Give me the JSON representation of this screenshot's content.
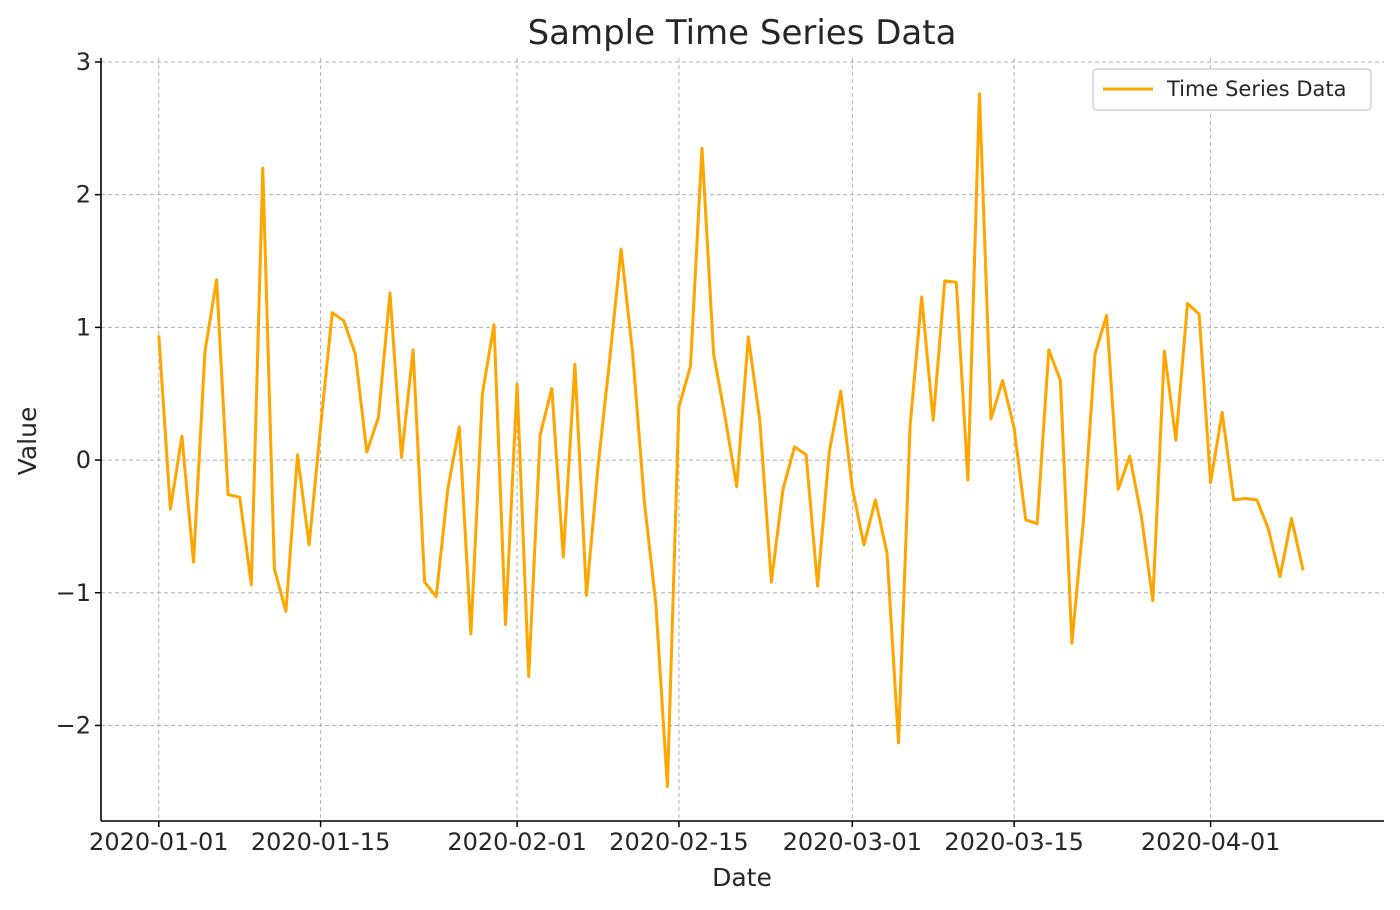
{
  "chart_data": {
    "type": "line",
    "title": "Sample Time Series Data",
    "xlabel": "Date",
    "ylabel": "Value",
    "x_start": "2020-01-01",
    "x_ticks": [
      "2020-01-01",
      "2020-01-15",
      "2020-02-01",
      "2020-02-15",
      "2020-03-01",
      "2020-03-15",
      "2020-04-01"
    ],
    "y_ticks": [
      3,
      2,
      1,
      0,
      -1,
      -2
    ],
    "y_tick_labels": [
      "3",
      "2",
      "1",
      "0",
      "−1",
      "−2"
    ],
    "xlim": [
      "2019-12-27",
      "2020-04-16"
    ],
    "ylim": [
      -2.72,
      3.03
    ],
    "grid": true,
    "legend_position": "top-right",
    "series": [
      {
        "name": "Time Series Data",
        "color": "#ffa500",
        "values": [
          0.94,
          -0.37,
          0.18,
          -0.77,
          0.82,
          1.36,
          -0.26,
          -0.28,
          -0.94,
          2.2,
          -0.82,
          -1.14,
          0.04,
          -0.64,
          0.25,
          1.11,
          1.05,
          0.8,
          0.06,
          0.32,
          1.26,
          0.02,
          0.83,
          -0.92,
          -1.03,
          -0.22,
          0.25,
          -1.31,
          0.5,
          1.02,
          -1.24,
          0.57,
          -1.63,
          0.19,
          0.54,
          -0.73,
          0.72,
          -1.02,
          -0.05,
          0.75,
          1.59,
          0.8,
          -0.31,
          -1.08,
          -2.46,
          0.4,
          0.71,
          2.35,
          0.8,
          0.32,
          -0.2,
          0.93,
          0.3,
          -0.92,
          -0.22,
          0.1,
          0.04,
          -0.95,
          0.06,
          0.52,
          -0.21,
          -0.64,
          -0.3,
          -0.7,
          -2.13,
          0.26,
          1.23,
          0.3,
          1.35,
          1.34,
          -0.15,
          2.76,
          0.31,
          0.6,
          0.24,
          -0.45,
          -0.48,
          0.83,
          0.6,
          -1.38,
          -0.45,
          0.8,
          1.09,
          -0.22,
          0.03,
          -0.42,
          -1.06,
          0.82,
          0.15,
          1.18,
          1.1,
          -0.17,
          0.36,
          -0.3,
          -0.29,
          -0.3,
          -0.52,
          -0.88,
          -0.44,
          -0.83
        ]
      }
    ]
  }
}
